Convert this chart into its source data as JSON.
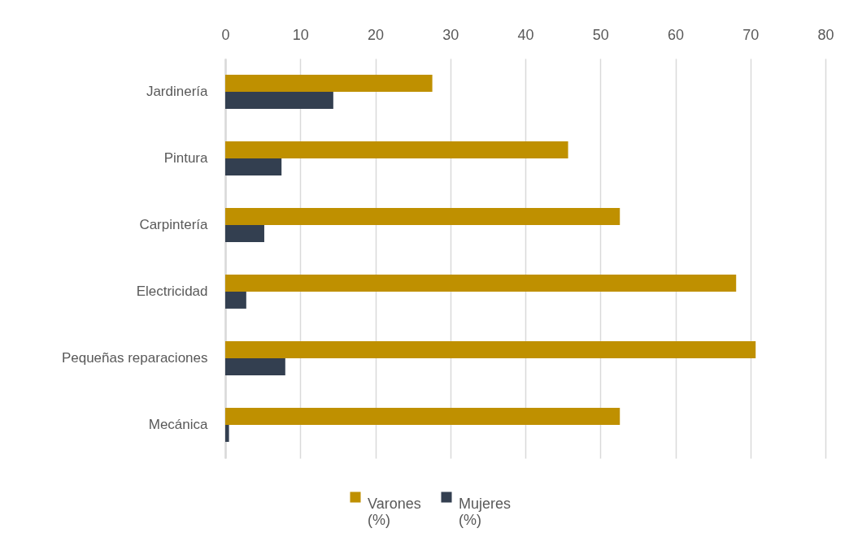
{
  "chart_data": {
    "type": "bar",
    "orientation": "horizontal",
    "categories": [
      "Jardinería",
      "Pintura",
      "Carpintería",
      "Electricidad",
      "Pequeñas reparaciones",
      "Mecánica"
    ],
    "series": [
      {
        "name": "Varones (%)",
        "color": "#bf9000",
        "values": [
          27.6,
          45.7,
          52.6,
          68.1,
          70.7,
          52.6
        ]
      },
      {
        "name": "Mujeres (%)",
        "color": "#333f50",
        "values": [
          14.4,
          7.5,
          5.2,
          2.8,
          8.0,
          0.5
        ]
      }
    ],
    "xlim": [
      0,
      80
    ],
    "xticks": [
      0,
      10,
      20,
      30,
      40,
      50,
      60,
      70,
      80
    ],
    "grid": "x",
    "legend": "bottom"
  }
}
